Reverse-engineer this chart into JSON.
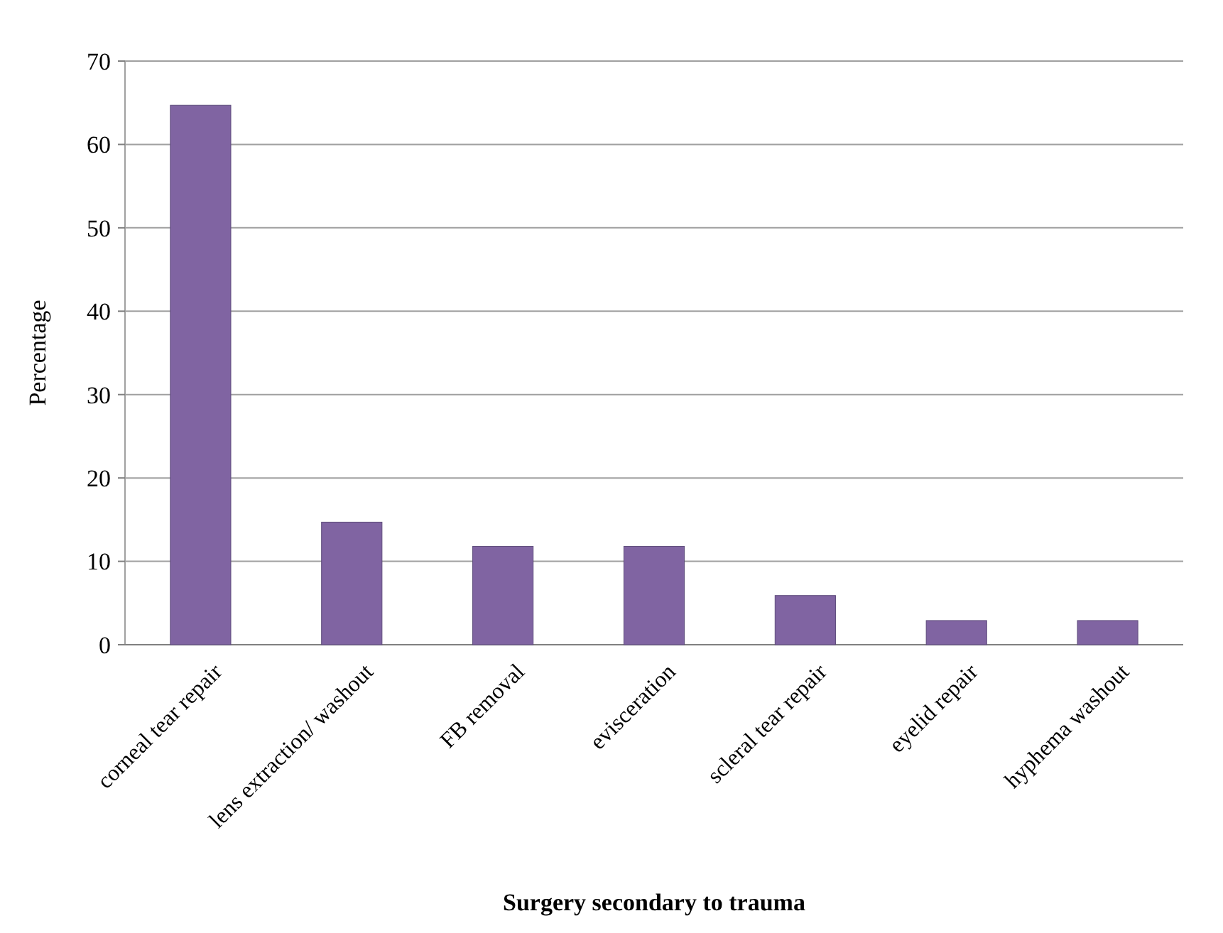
{
  "chart_data": {
    "type": "bar",
    "xlabel": "Surgery secondary to trauma",
    "ylabel": "Percentage",
    "categories": [
      "corneal tear repair",
      "lens extraction/ washout",
      "FB removal",
      "evisceration",
      "scleral tear repair",
      "eyelid repair",
      "hyphema washout"
    ],
    "values": [
      64.7,
      14.7,
      11.8,
      11.8,
      5.9,
      2.9,
      2.9
    ],
    "color": "#8064a2",
    "ylim": [
      0,
      70
    ],
    "yticks": [
      0,
      10,
      20,
      30,
      40,
      50,
      60,
      70
    ],
    "grid": "y"
  }
}
